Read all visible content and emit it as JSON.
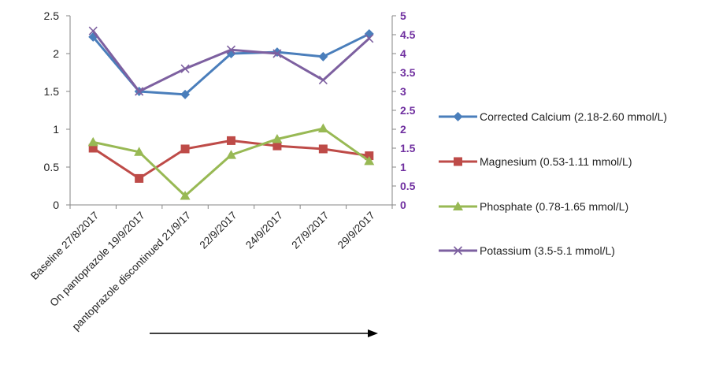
{
  "chart_data": {
    "type": "line",
    "categories": [
      "Baseline 27/8/2017",
      "On pantoprazole 19/9/2017",
      "pantoprazole discontinued 21/9/17",
      "22/9/2017",
      "24/9/2017",
      "27/9/2017",
      "29/9/2017"
    ],
    "y_left": {
      "min": 0,
      "max": 2.5,
      "ticks": [
        "0",
        "0.5",
        "1",
        "1.5",
        "2",
        "2.5"
      ]
    },
    "y_right": {
      "min": 0,
      "max": 5,
      "ticks": [
        "0",
        "0.5",
        "1",
        "1.5",
        "2",
        "2.5",
        "3",
        "3.5",
        "4",
        "4.5",
        "5"
      ],
      "color": "#7030A0"
    },
    "grid": false,
    "legend_position": "right",
    "series": [
      {
        "name": "Corrected Calcium (2.18-2.60 mmol/L)",
        "axis": "left",
        "color": "#4A7EBB",
        "marker": "diamond",
        "values": [
          2.22,
          1.5,
          1.46,
          2.0,
          2.02,
          1.96,
          2.26
        ]
      },
      {
        "name": "Magnesium (0.53-1.11 mmol/L)",
        "axis": "left",
        "color": "#BE4B48",
        "marker": "square",
        "values": [
          0.75,
          0.35,
          0.74,
          0.85,
          0.78,
          0.74,
          0.65
        ]
      },
      {
        "name": "Phosphate (0.78-1.65 mmol/L)",
        "axis": "left",
        "color": "#98B954",
        "marker": "triangle",
        "values": [
          0.83,
          0.7,
          0.12,
          0.66,
          0.87,
          1.01,
          0.58
        ]
      },
      {
        "name": "Potassium (3.5-5.1 mmol/L)",
        "axis": "right",
        "color": "#7D60A0",
        "marker": "x",
        "values": [
          4.6,
          3.0,
          3.6,
          4.1,
          4.0,
          3.3,
          4.4
        ]
      }
    ],
    "annotation": "arrow pointing right below x-axis"
  }
}
